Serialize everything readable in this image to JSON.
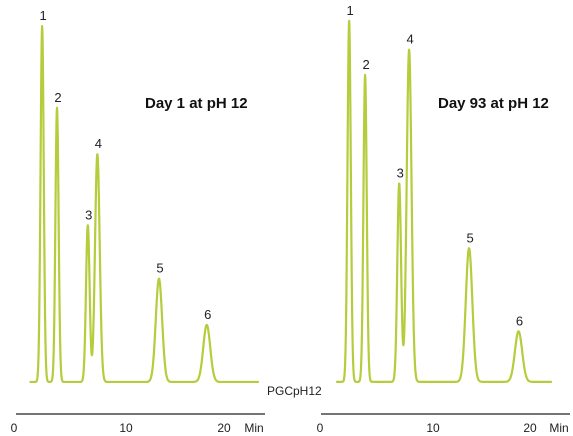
{
  "caption": "PGCpH12",
  "colors": {
    "trace": "#b5cc3c",
    "axis": "#222222",
    "text": "#222222"
  },
  "chart_data": [
    {
      "type": "line",
      "title": "Day 1 at pH 12",
      "xlabel": "Min",
      "ylabel": "",
      "xlim": [
        0,
        23
      ],
      "ylim": [
        0,
        1
      ],
      "x_ticks": [
        0,
        10,
        20
      ],
      "tick_labels": [
        "0",
        "10",
        "20"
      ],
      "grid": false,
      "baseline": 0.017,
      "peaks": [
        {
          "label": "1",
          "x": 2.65,
          "height": 1.0,
          "width": 0.15
        },
        {
          "label": "2",
          "x": 4.05,
          "height": 0.77,
          "width": 0.15
        },
        {
          "label": "3",
          "x": 6.95,
          "height": 0.44,
          "width": 0.17
        },
        {
          "label": "4",
          "x": 7.85,
          "height": 0.64,
          "width": 0.22
        },
        {
          "label": "5",
          "x": 13.65,
          "height": 0.29,
          "width": 0.3
        },
        {
          "label": "6",
          "x": 18.15,
          "height": 0.16,
          "width": 0.33
        }
      ]
    },
    {
      "type": "line",
      "title": "Day 93 at pH 12",
      "xlabel": "Min",
      "ylabel": "",
      "xlim": [
        0,
        23
      ],
      "ylim": [
        0,
        1
      ],
      "x_ticks": [
        0,
        10,
        20
      ],
      "tick_labels": [
        "0",
        "10",
        "20"
      ],
      "grid": false,
      "baseline": 0.017,
      "peaks": [
        {
          "label": "1",
          "x": 2.65,
          "height": 1.0,
          "width": 0.15
        },
        {
          "label": "2",
          "x": 4.1,
          "height": 0.85,
          "width": 0.15
        },
        {
          "label": "3",
          "x": 7.2,
          "height": 0.55,
          "width": 0.17
        },
        {
          "label": "4",
          "x": 8.1,
          "height": 0.92,
          "width": 0.22
        },
        {
          "label": "5",
          "x": 13.55,
          "height": 0.37,
          "width": 0.3
        },
        {
          "label": "6",
          "x": 18.05,
          "height": 0.14,
          "width": 0.33
        }
      ]
    }
  ]
}
